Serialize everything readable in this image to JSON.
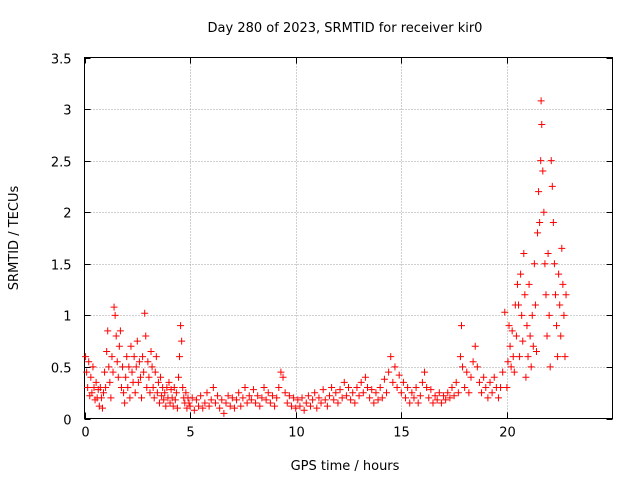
{
  "chart_data": {
    "type": "scatter",
    "title": "Day 280 of 2023, SRMTID for receiver kir0",
    "xlabel": "GPS time / hours",
    "ylabel": "SRMTID / TECUs",
    "xlim": [
      0,
      25
    ],
    "ylim": [
      0,
      3.5
    ],
    "xticks": [
      0,
      5,
      10,
      15,
      20
    ],
    "yticks": [
      0,
      0.5,
      1,
      1.5,
      2,
      2.5,
      3,
      3.5
    ],
    "xtick_labels": [
      "0",
      "5",
      "10",
      "15",
      "20"
    ],
    "ytick_labels": [
      "0",
      "0.5",
      "1",
      "1.5",
      "2",
      "2.5",
      "3",
      "3.5"
    ],
    "grid": true,
    "marker": "plus",
    "color": "#ff0000",
    "series": [
      {
        "name": "SRMTID",
        "points": [
          [
            0.05,
            0.6
          ],
          [
            0.1,
            0.45
          ],
          [
            0.15,
            0.3
          ],
          [
            0.2,
            0.55
          ],
          [
            0.25,
            0.22
          ],
          [
            0.3,
            0.4
          ],
          [
            0.35,
            0.25
          ],
          [
            0.4,
            0.5
          ],
          [
            0.45,
            0.3
          ],
          [
            0.5,
            0.18
          ],
          [
            0.55,
            0.35
          ],
          [
            0.6,
            0.2
          ],
          [
            0.65,
            0.28
          ],
          [
            0.7,
            0.12
          ],
          [
            0.75,
            0.3
          ],
          [
            0.8,
            0.2
          ],
          [
            0.85,
            0.1
          ],
          [
            0.9,
            0.25
          ],
          [
            0.95,
            0.45
          ],
          [
            1.0,
            0.3
          ],
          [
            1.05,
            0.65
          ],
          [
            1.1,
            0.85
          ],
          [
            1.15,
            0.5
          ],
          [
            1.2,
            0.35
          ],
          [
            1.25,
            0.2
          ],
          [
            1.3,
            0.6
          ],
          [
            1.35,
            0.45
          ],
          [
            1.4,
            1.08
          ],
          [
            1.45,
            1.0
          ],
          [
            1.5,
            0.8
          ],
          [
            1.55,
            0.55
          ],
          [
            1.6,
            0.4
          ],
          [
            1.65,
            0.7
          ],
          [
            1.7,
            0.85
          ],
          [
            1.75,
            0.3
          ],
          [
            1.8,
            0.5
          ],
          [
            1.85,
            0.25
          ],
          [
            1.9,
            0.15
          ],
          [
            1.95,
            0.4
          ],
          [
            2.0,
            0.6
          ],
          [
            2.05,
            0.3
          ],
          [
            2.1,
            0.5
          ],
          [
            2.15,
            0.2
          ],
          [
            2.2,
            0.7
          ],
          [
            2.25,
            0.45
          ],
          [
            2.3,
            0.35
          ],
          [
            2.35,
            0.6
          ],
          [
            2.4,
            0.25
          ],
          [
            2.45,
            0.5
          ],
          [
            2.5,
            0.75
          ],
          [
            2.55,
            0.35
          ],
          [
            2.6,
            0.55
          ],
          [
            2.65,
            0.4
          ],
          [
            2.7,
            0.2
          ],
          [
            2.75,
            0.6
          ],
          [
            2.8,
            0.45
          ],
          [
            2.85,
            1.02
          ],
          [
            2.9,
            0.8
          ],
          [
            2.95,
            0.3
          ],
          [
            3.0,
            0.55
          ],
          [
            3.05,
            0.4
          ],
          [
            3.1,
            0.25
          ],
          [
            3.15,
            0.65
          ],
          [
            3.2,
            0.5
          ],
          [
            3.25,
            0.3
          ],
          [
            3.3,
            0.2
          ],
          [
            3.35,
            0.45
          ],
          [
            3.4,
            0.6
          ],
          [
            3.45,
            0.25
          ],
          [
            3.5,
            0.35
          ],
          [
            3.55,
            0.15
          ],
          [
            3.6,
            0.4
          ],
          [
            3.65,
            0.22
          ],
          [
            3.7,
            0.3
          ],
          [
            3.75,
            0.18
          ],
          [
            3.8,
            0.25
          ],
          [
            3.85,
            0.12
          ],
          [
            3.9,
            0.3
          ],
          [
            3.95,
            0.2
          ],
          [
            4.0,
            0.35
          ],
          [
            4.05,
            0.15
          ],
          [
            4.1,
            0.28
          ],
          [
            4.15,
            0.2
          ],
          [
            4.2,
            0.12
          ],
          [
            4.25,
            0.3
          ],
          [
            4.3,
            0.18
          ],
          [
            4.35,
            0.25
          ],
          [
            4.4,
            0.1
          ],
          [
            4.45,
            0.4
          ],
          [
            4.5,
            0.6
          ],
          [
            4.55,
            0.9
          ],
          [
            4.6,
            0.75
          ],
          [
            4.65,
            0.3
          ],
          [
            4.7,
            0.2
          ],
          [
            4.75,
            0.15
          ],
          [
            4.8,
            0.25
          ],
          [
            4.85,
            0.1
          ],
          [
            4.9,
            0.2
          ],
          [
            4.95,
            0.15
          ],
          [
            5.0,
            0.12
          ],
          [
            5.1,
            0.2
          ],
          [
            5.2,
            0.08
          ],
          [
            5.3,
            0.18
          ],
          [
            5.4,
            0.12
          ],
          [
            5.5,
            0.22
          ],
          [
            5.6,
            0.1
          ],
          [
            5.7,
            0.15
          ],
          [
            5.8,
            0.25
          ],
          [
            5.9,
            0.12
          ],
          [
            6.0,
            0.18
          ],
          [
            6.1,
            0.3
          ],
          [
            6.2,
            0.15
          ],
          [
            6.3,
            0.22
          ],
          [
            6.4,
            0.1
          ],
          [
            6.5,
            0.18
          ],
          [
            6.6,
            0.05
          ],
          [
            6.7,
            0.15
          ],
          [
            6.8,
            0.22
          ],
          [
            6.9,
            0.12
          ],
          [
            7.0,
            0.2
          ],
          [
            7.1,
            0.1
          ],
          [
            7.2,
            0.18
          ],
          [
            7.3,
            0.25
          ],
          [
            7.4,
            0.12
          ],
          [
            7.5,
            0.2
          ],
          [
            7.6,
            0.3
          ],
          [
            7.7,
            0.15
          ],
          [
            7.8,
            0.22
          ],
          [
            7.9,
            0.18
          ],
          [
            8.0,
            0.28
          ],
          [
            8.1,
            0.15
          ],
          [
            8.2,
            0.22
          ],
          [
            8.3,
            0.12
          ],
          [
            8.4,
            0.2
          ],
          [
            8.5,
            0.3
          ],
          [
            8.6,
            0.18
          ],
          [
            8.7,
            0.25
          ],
          [
            8.8,
            0.15
          ],
          [
            8.9,
            0.22
          ],
          [
            9.0,
            0.12
          ],
          [
            9.1,
            0.2
          ],
          [
            9.2,
            0.3
          ],
          [
            9.3,
            0.45
          ],
          [
            9.4,
            0.4
          ],
          [
            9.5,
            0.25
          ],
          [
            9.6,
            0.15
          ],
          [
            9.7,
            0.22
          ],
          [
            9.8,
            0.12
          ],
          [
            9.9,
            0.2
          ],
          [
            10.0,
            0.1
          ],
          [
            10.1,
            0.18
          ],
          [
            10.2,
            0.12
          ],
          [
            10.3,
            0.2
          ],
          [
            10.4,
            0.08
          ],
          [
            10.5,
            0.15
          ],
          [
            10.6,
            0.22
          ],
          [
            10.7,
            0.12
          ],
          [
            10.8,
            0.18
          ],
          [
            10.9,
            0.25
          ],
          [
            11.0,
            0.1
          ],
          [
            11.1,
            0.2
          ],
          [
            11.2,
            0.15
          ],
          [
            11.3,
            0.28
          ],
          [
            11.4,
            0.18
          ],
          [
            11.5,
            0.12
          ],
          [
            11.6,
            0.22
          ],
          [
            11.7,
            0.3
          ],
          [
            11.8,
            0.18
          ],
          [
            11.9,
            0.25
          ],
          [
            12.0,
            0.15
          ],
          [
            12.1,
            0.28
          ],
          [
            12.2,
            0.2
          ],
          [
            12.3,
            0.35
          ],
          [
            12.4,
            0.22
          ],
          [
            12.5,
            0.3
          ],
          [
            12.6,
            0.18
          ],
          [
            12.7,
            0.25
          ],
          [
            12.8,
            0.15
          ],
          [
            12.9,
            0.3
          ],
          [
            13.0,
            0.22
          ],
          [
            13.1,
            0.35
          ],
          [
            13.2,
            0.25
          ],
          [
            13.3,
            0.4
          ],
          [
            13.4,
            0.3
          ],
          [
            13.5,
            0.2
          ],
          [
            13.6,
            0.28
          ],
          [
            13.7,
            0.15
          ],
          [
            13.8,
            0.25
          ],
          [
            13.9,
            0.18
          ],
          [
            14.0,
            0.3
          ],
          [
            14.1,
            0.2
          ],
          [
            14.2,
            0.38
          ],
          [
            14.3,
            0.25
          ],
          [
            14.4,
            0.45
          ],
          [
            14.5,
            0.6
          ],
          [
            14.6,
            0.35
          ],
          [
            14.7,
            0.5
          ],
          [
            14.8,
            0.3
          ],
          [
            14.9,
            0.42
          ],
          [
            15.0,
            0.25
          ],
          [
            15.1,
            0.35
          ],
          [
            15.2,
            0.2
          ],
          [
            15.3,
            0.3
          ],
          [
            15.4,
            0.15
          ],
          [
            15.5,
            0.25
          ],
          [
            15.6,
            0.2
          ],
          [
            15.7,
            0.3
          ],
          [
            15.8,
            0.15
          ],
          [
            15.9,
            0.22
          ],
          [
            16.0,
            0.35
          ],
          [
            16.1,
            0.45
          ],
          [
            16.2,
            0.3
          ],
          [
            16.3,
            0.2
          ],
          [
            16.4,
            0.28
          ],
          [
            16.5,
            0.15
          ],
          [
            16.6,
            0.22
          ],
          [
            16.7,
            0.18
          ],
          [
            16.8,
            0.25
          ],
          [
            16.9,
            0.15
          ],
          [
            17.0,
            0.22
          ],
          [
            17.1,
            0.18
          ],
          [
            17.2,
            0.25
          ],
          [
            17.3,
            0.2
          ],
          [
            17.4,
            0.3
          ],
          [
            17.5,
            0.22
          ],
          [
            17.6,
            0.35
          ],
          [
            17.7,
            0.25
          ],
          [
            17.8,
            0.6
          ],
          [
            17.85,
            0.9
          ],
          [
            17.9,
            0.5
          ],
          [
            18.0,
            0.3
          ],
          [
            18.1,
            0.45
          ],
          [
            18.2,
            0.25
          ],
          [
            18.3,
            0.4
          ],
          [
            18.4,
            0.55
          ],
          [
            18.5,
            0.7
          ],
          [
            18.6,
            0.5
          ],
          [
            18.7,
            0.35
          ],
          [
            18.8,
            0.25
          ],
          [
            18.9,
            0.4
          ],
          [
            19.0,
            0.3
          ],
          [
            19.1,
            0.2
          ],
          [
            19.2,
            0.35
          ],
          [
            19.3,
            0.25
          ],
          [
            19.4,
            0.4
          ],
          [
            19.5,
            0.3
          ],
          [
            19.6,
            0.2
          ],
          [
            19.7,
            0.3
          ],
          [
            19.8,
            0.45
          ],
          [
            19.9,
            1.03
          ],
          [
            20.0,
            0.3
          ],
          [
            20.05,
            0.55
          ],
          [
            20.1,
            0.9
          ],
          [
            20.15,
            0.7
          ],
          [
            20.2,
            0.5
          ],
          [
            20.25,
            0.85
          ],
          [
            20.3,
            0.6
          ],
          [
            20.35,
            0.45
          ],
          [
            20.4,
            1.1
          ],
          [
            20.45,
            0.8
          ],
          [
            20.5,
            1.3
          ],
          [
            20.55,
            1.1
          ],
          [
            20.6,
            0.6
          ],
          [
            20.65,
            1.4
          ],
          [
            20.7,
            1.0
          ],
          [
            20.75,
            0.75
          ],
          [
            20.8,
            1.6
          ],
          [
            20.85,
            1.2
          ],
          [
            20.9,
            0.4
          ],
          [
            20.95,
            0.9
          ],
          [
            21.0,
            0.6
          ],
          [
            21.05,
            1.3
          ],
          [
            21.1,
            0.8
          ],
          [
            21.15,
            0.5
          ],
          [
            21.2,
            1.0
          ],
          [
            21.25,
            0.7
          ],
          [
            21.3,
            1.5
          ],
          [
            21.35,
            1.1
          ],
          [
            21.4,
            0.65
          ],
          [
            21.45,
            1.8
          ],
          [
            21.5,
            2.2
          ],
          [
            21.55,
            1.9
          ],
          [
            21.6,
            2.5
          ],
          [
            21.62,
            3.08
          ],
          [
            21.65,
            2.85
          ],
          [
            21.7,
            2.4
          ],
          [
            21.75,
            2.0
          ],
          [
            21.8,
            1.5
          ],
          [
            21.85,
            1.2
          ],
          [
            21.9,
            0.8
          ],
          [
            21.95,
            1.6
          ],
          [
            22.0,
            1.0
          ],
          [
            22.05,
            0.5
          ],
          [
            22.1,
            2.5
          ],
          [
            22.15,
            2.25
          ],
          [
            22.2,
            1.9
          ],
          [
            22.25,
            1.5
          ],
          [
            22.3,
            1.2
          ],
          [
            22.35,
            0.9
          ],
          [
            22.4,
            0.6
          ],
          [
            22.45,
            1.4
          ],
          [
            22.5,
            1.1
          ],
          [
            22.55,
            0.8
          ],
          [
            22.6,
            1.65
          ],
          [
            22.65,
            1.3
          ],
          [
            22.7,
            1.0
          ],
          [
            22.75,
            0.6
          ],
          [
            22.8,
            1.2
          ]
        ]
      }
    ]
  }
}
